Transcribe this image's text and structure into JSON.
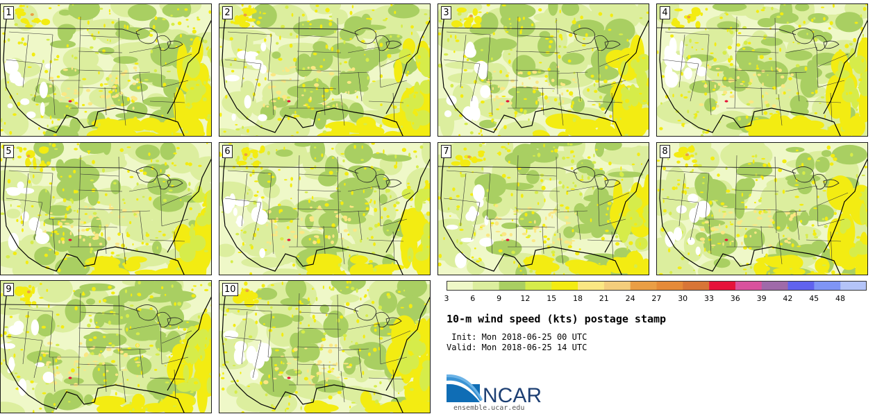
{
  "members": [
    {
      "label": "1"
    },
    {
      "label": "2"
    },
    {
      "label": "3"
    },
    {
      "label": "4"
    },
    {
      "label": "5"
    },
    {
      "label": "6"
    },
    {
      "label": "7"
    },
    {
      "label": "8"
    },
    {
      "label": "9"
    },
    {
      "label": "10"
    }
  ],
  "colorbar": {
    "units": "kts",
    "ticks": [
      "3",
      "6",
      "9",
      "12",
      "15",
      "18",
      "21",
      "24",
      "27",
      "30",
      "33",
      "36",
      "39",
      "42",
      "45",
      "48"
    ],
    "colors": [
      "#eff8c8",
      "#dcee9e",
      "#a9cf62",
      "#d6ec4a",
      "#f3ec12",
      "#fbe783",
      "#f3cd7c",
      "#ea9e45",
      "#e58a38",
      "#d87536",
      "#e5133a",
      "#d9529d",
      "#9f6aa9",
      "#6063ee",
      "#7f95f5",
      "#b4c4f8"
    ]
  },
  "title": "10-m wind speed (kts) postage stamp",
  "init_line": " Init: Mon 2018-06-25 00 UTC",
  "valid_line": "Valid: Mon 2018-06-25 14 UTC",
  "logo_text": "NCAR",
  "website": "ensemble.ucar.edu"
}
